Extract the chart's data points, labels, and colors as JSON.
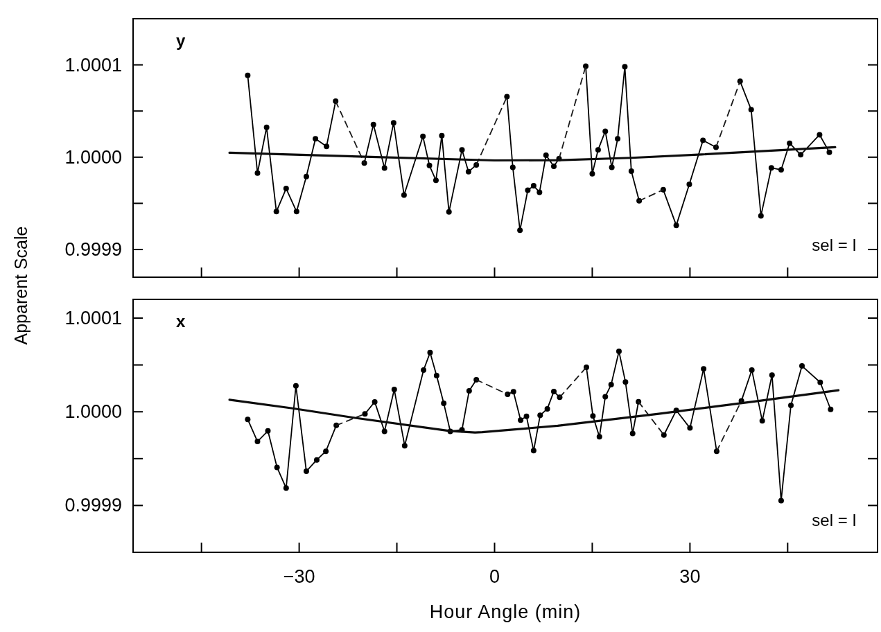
{
  "chart_data": [
    {
      "type": "line",
      "ylabel": "Apparent Scale",
      "annotations": [
        "y",
        "sel = I"
      ],
      "xlim": [
        -55.5,
        58.8
      ],
      "xticks": [
        {
          "value": -45,
          "label": null
        },
        {
          "value": -30,
          "label": null
        },
        {
          "value": -15,
          "label": null
        },
        {
          "value": 0,
          "label": null
        },
        {
          "value": 15,
          "label": null
        },
        {
          "value": 30,
          "label": null
        },
        {
          "value": 45,
          "label": null
        }
      ],
      "ylim": [
        0.99987,
        1.00015
      ],
      "yticks": [
        {
          "value": 0.9999,
          "label": "0.9999"
        },
        {
          "value": 0.99995,
          "label": null
        },
        {
          "value": 1,
          "label": "1.0000"
        },
        {
          "value": 1.00005,
          "label": null
        },
        {
          "value": 1.0001,
          "label": "1.0001"
        }
      ],
      "tick_labels": "y",
      "grid": false,
      "series": [
        {
          "color": "#000000",
          "marker": "circle",
          "line_style": "solid",
          "x": [
            -37.9,
            -36.4,
            -35.0,
            -33.5,
            -32.0,
            -30.4,
            -28.9,
            -27.5,
            -25.8,
            -24.4,
            -22.2,
            -20.0,
            -18.6,
            -16.9,
            -15.5,
            -13.9,
            -11.0,
            -10.0,
            -9.0,
            -8.1,
            -7.0,
            -5.0,
            -4.0,
            -2.8,
            -0.5,
            1.9,
            2.8,
            3.9,
            5.1,
            6.0,
            6.9,
            7.9,
            9.1,
            9.9,
            12.0,
            14.0,
            15.0,
            15.9,
            17.0,
            18.0,
            18.9,
            20.0,
            21.0,
            22.2,
            24.0,
            25.9,
            27.9,
            29.9,
            32.0,
            34.0,
            35.8,
            37.7,
            39.4,
            40.9,
            42.5,
            44.0,
            45.3,
            47.0,
            49.9,
            51.4
          ],
          "values": [
            1.0000886,
            0.9999828,
            1.0000323,
            0.9999411,
            0.999966,
            0.9999411,
            0.999979,
            1.0000199,
            1.0000117,
            1.0000606,
            null,
            0.9999937,
            1.0000353,
            0.9999882,
            1.0000373,
            0.999959,
            1.0000225,
            0.999991,
            0.9999749,
            1.0000234,
            0.9999407,
            1.000008,
            0.9999842,
            0.9999917,
            null,
            1.0000655,
            0.999989,
            0.9999208,
            0.9999642,
            0.999969,
            0.999962,
            1.0000021,
            0.9999901,
            0.9999983,
            null,
            1.0000985,
            0.999982,
            1.000008,
            1.0000281,
            0.999989,
            1.0000199,
            1.000098,
            0.9999848,
            0.9999528,
            null,
            0.9999647,
            0.9999262,
            0.9999706,
            1.0000183,
            1.0000108,
            null,
            1.0000822,
            1.0000514,
            0.9999365,
            0.9999885,
            0.9999863,
            1.0000151,
            1.0000026,
            1.0000243,
            1.0000054
          ]
        },
        {
          "color": "#1a1a1a",
          "marker": "none",
          "line_style": "dashed",
          "x": [
            -24.4,
            -20.0,
            -10,
            -2.8,
            1.9,
            6,
            9.9,
            14.0,
            18,
            22.2,
            25.9,
            30,
            34.0,
            37.7
          ],
          "values": [
            1.0000606,
            0.9999937,
            null,
            0.9999917,
            1.0000655,
            null,
            0.9999983,
            1.0000985,
            null,
            0.9999528,
            0.9999647,
            null,
            1.0000108,
            1.0000822
          ]
        },
        {
          "color": "#0d0d0d",
          "marker": "none",
          "line_style": "solid",
          "x": [
            -40.7,
            -20.0,
            0.0,
            10.0,
            21.0,
            31.8,
            52.3
          ],
          "values": [
            1.0000048,
            1.0000005,
            0.9999965,
            0.9999968,
            0.9999993,
            1.000003,
            1.0000108
          ]
        }
      ]
    },
    {
      "type": "line",
      "xlabel": "Hour Angle (min)",
      "annotations": [
        "x",
        "sel = I"
      ],
      "xlim": [
        -55.5,
        58.8
      ],
      "xticks": [
        {
          "value": -45,
          "label": null
        },
        {
          "value": -30,
          "label": "−30"
        },
        {
          "value": -15,
          "label": null
        },
        {
          "value": 0,
          "label": "0"
        },
        {
          "value": 15,
          "label": null
        },
        {
          "value": 30,
          "label": "30"
        },
        {
          "value": 45,
          "label": null
        }
      ],
      "ylim": [
        0.99985,
        1.00012
      ],
      "yticks": [
        {
          "value": 0.9999,
          "label": "0.9999"
        },
        {
          "value": 0.99995,
          "label": null
        },
        {
          "value": 1,
          "label": "1.0000"
        },
        {
          "value": 1.00005,
          "label": null
        },
        {
          "value": 1.0001,
          "label": "1.0001"
        }
      ],
      "grid": false,
      "series": [
        {
          "color": "#000000",
          "marker": "circle",
          "line_style": "solid",
          "x": [
            -37.9,
            -36.4,
            -34.8,
            -33.4,
            -32.0,
            -30.5,
            -28.9,
            -27.3,
            -25.9,
            -24.3,
            -22.1,
            -19.9,
            -18.4,
            -16.9,
            -15.4,
            -13.8,
            -10.9,
            -9.9,
            -8.9,
            -7.8,
            -6.8,
            -5.0,
            -3.9,
            -2.8,
            -0.4,
            2.0,
            2.9,
            4.0,
            4.9,
            6.0,
            7.0,
            8.1,
            9.1,
            10.0,
            12.0,
            14.1,
            15.1,
            16.1,
            17.0,
            17.9,
            19.1,
            20.1,
            21.2,
            22.1,
            24.0,
            26.0,
            27.9,
            30.0,
            32.1,
            34.1,
            36.0,
            37.9,
            39.5,
            41.1,
            42.6,
            44.0,
            45.5,
            47.2,
            50.0,
            51.6
          ],
          "values": [
            0.9999919,
            0.9999683,
            0.9999796,
            0.9999407,
            0.9999186,
            1.0000278,
            0.9999365,
            0.9999486,
            0.9999579,
            0.9999855,
            null,
            0.9999978,
            1.0000106,
            0.9999791,
            1.0000238,
            0.9999638,
            1.0000445,
            1.0000632,
            1.0000386,
            1.0000091,
            0.9999791,
            0.9999808,
            1.0000224,
            1.0000342,
            null,
            1.0000187,
            1.0000214,
            0.9999911,
            0.9999951,
            0.9999585,
            0.9999962,
            1.0000032,
            1.0000217,
            1.0000155,
            null,
            1.0000475,
            0.9999956,
            0.9999733,
            1.0000161,
            1.000029,
            1.0000645,
            1.0000317,
            0.9999768,
            1.0000107,
            null,
            0.9999752,
            1.0000015,
            0.9999827,
            1.0000459,
            0.9999579,
            null,
            1.0000117,
            1.0000446,
            0.9999903,
            1.0000392,
            0.9999052,
            1.0000069,
            1.0000489,
            1.0000314,
            1.0000026
          ]
        },
        {
          "color": "#1a1a1a",
          "marker": "none",
          "line_style": "dashed",
          "x": [
            -24.3,
            -19.9,
            -10,
            -2.8,
            2.0,
            6,
            10.0,
            14.1,
            18,
            22.1,
            26.0,
            30,
            34.1,
            37.9
          ],
          "values": [
            0.9999855,
            0.9999978,
            null,
            1.0000342,
            1.0000187,
            null,
            1.0000155,
            1.0000475,
            null,
            1.0000107,
            0.9999752,
            null,
            0.9999579,
            1.0000117
          ]
        },
        {
          "color": "#0d0d0d",
          "marker": "none",
          "line_style": "solid",
          "x": [
            -40.7,
            -31.0,
            -21.8,
            -6.9,
            -3.0,
            -1.9,
            9.7,
            25.2,
            40.7,
            52.8
          ],
          "values": [
            1.0000128,
            1.0000037,
            0.9999939,
            0.9999796,
            0.9999779,
            0.9999782,
            0.9999851,
            0.9999978,
            1.0000117,
            1.000023
          ]
        }
      ]
    }
  ]
}
